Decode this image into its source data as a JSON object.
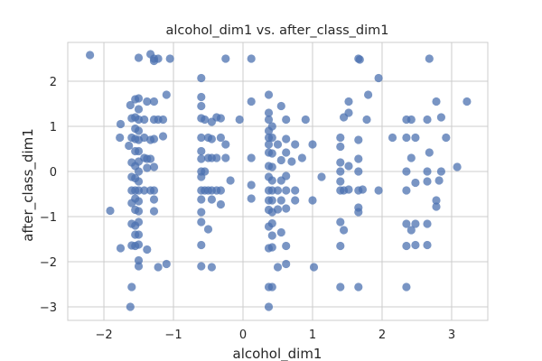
{
  "chart_data": {
    "type": "scatter",
    "title": "alcohol_dim1 vs. after_class_dim1",
    "xlabel": "alcohol_dim1",
    "ylabel": "after_class_dim1",
    "xlim": [
      -2.52,
      3.52
    ],
    "ylim": [
      -3.3,
      2.86
    ],
    "xticks": [
      -2,
      -1,
      0,
      1,
      2,
      3
    ],
    "yticks": [
      -3,
      -2,
      -1,
      0,
      1,
      2
    ],
    "grid": true,
    "point_color": "#4c72b0",
    "background": "#ffffff",
    "grid_color": "#cccccc",
    "points": [
      [
        -2.2,
        2.58
      ],
      [
        -1.91,
        -0.87
      ],
      [
        -1.76,
        1.05
      ],
      [
        -1.77,
        0.75
      ],
      [
        -1.76,
        -1.7
      ],
      [
        -1.64,
        0.57
      ],
      [
        -1.62,
        1.47
      ],
      [
        -1.6,
        1.18
      ],
      [
        -1.6,
        0.75
      ],
      [
        -1.6,
        0.2
      ],
      [
        -1.6,
        -0.12
      ],
      [
        -1.6,
        -0.42
      ],
      [
        -1.6,
        -0.7
      ],
      [
        -1.6,
        -1.16
      ],
      [
        -1.6,
        -1.64
      ],
      [
        -1.6,
        -2.56
      ],
      [
        -1.62,
        -3.0
      ],
      [
        -1.55,
        1.6
      ],
      [
        -1.55,
        1.2
      ],
      [
        -1.55,
        0.95
      ],
      [
        -1.55,
        0.72
      ],
      [
        -1.55,
        0.45
      ],
      [
        -1.55,
        0.12
      ],
      [
        -1.55,
        -0.15
      ],
      [
        -1.55,
        -0.42
      ],
      [
        -1.55,
        -0.6
      ],
      [
        -1.55,
        -0.85
      ],
      [
        -1.55,
        -1.2
      ],
      [
        -1.55,
        -1.4
      ],
      [
        -1.55,
        -1.65
      ],
      [
        -1.5,
        2.52
      ],
      [
        -1.5,
        1.62
      ],
      [
        -1.5,
        1.38
      ],
      [
        -1.5,
        1.15
      ],
      [
        -1.5,
        0.9
      ],
      [
        -1.5,
        0.7
      ],
      [
        -1.5,
        0.45
      ],
      [
        -1.5,
        0.22
      ],
      [
        -1.5,
        0.0
      ],
      [
        -1.5,
        -0.22
      ],
      [
        -1.5,
        -0.42
      ],
      [
        -1.5,
        -0.66
      ],
      [
        -1.5,
        -0.88
      ],
      [
        -1.5,
        -1.12
      ],
      [
        -1.5,
        -1.4
      ],
      [
        -1.5,
        -1.62
      ],
      [
        -1.5,
        -1.97
      ],
      [
        -1.5,
        -2.1
      ],
      [
        -1.42,
        1.15
      ],
      [
        -1.42,
        0.75
      ],
      [
        -1.42,
        0.3
      ],
      [
        -1.42,
        -0.42
      ],
      [
        -1.38,
        1.55
      ],
      [
        -1.38,
        0.28
      ],
      [
        -1.38,
        0.08
      ],
      [
        -1.38,
        -1.73
      ],
      [
        -1.33,
        2.6
      ],
      [
        -1.33,
        0.7
      ],
      [
        -1.33,
        0.28
      ],
      [
        -1.33,
        -0.42
      ],
      [
        -1.28,
        2.5
      ],
      [
        -1.28,
        2.45
      ],
      [
        -1.28,
        1.55
      ],
      [
        -1.28,
        1.15
      ],
      [
        -1.28,
        0.72
      ],
      [
        -1.28,
        0.1
      ],
      [
        -1.28,
        -0.42
      ],
      [
        -1.28,
        -0.62
      ],
      [
        -1.28,
        -0.88
      ],
      [
        -1.22,
        2.5
      ],
      [
        -1.22,
        1.15
      ],
      [
        -1.22,
        -2.12
      ],
      [
        -1.15,
        1.15
      ],
      [
        -1.15,
        0.78
      ],
      [
        -1.1,
        1.7
      ],
      [
        -1.05,
        2.5
      ],
      [
        -1.1,
        -2.05
      ],
      [
        -0.6,
        2.07
      ],
      [
        -0.6,
        1.65
      ],
      [
        -0.6,
        1.45
      ],
      [
        -0.6,
        1.18
      ],
      [
        -0.6,
        0.75
      ],
      [
        -0.6,
        0.45
      ],
      [
        -0.6,
        0.28
      ],
      [
        -0.6,
        0.0
      ],
      [
        -0.6,
        -0.12
      ],
      [
        -0.6,
        -0.42
      ],
      [
        -0.6,
        -0.62
      ],
      [
        -0.6,
        -0.9
      ],
      [
        -0.6,
        -1.12
      ],
      [
        -0.6,
        -1.63
      ],
      [
        -0.6,
        -2.1
      ],
      [
        -0.55,
        1.15
      ],
      [
        -0.55,
        0.0
      ],
      [
        -0.55,
        -0.42
      ],
      [
        -0.5,
        0.75
      ],
      [
        -0.5,
        0.3
      ],
      [
        -0.5,
        -0.42
      ],
      [
        -0.5,
        -1.28
      ],
      [
        -0.45,
        1.1
      ],
      [
        -0.45,
        0.72
      ],
      [
        -0.45,
        0.3
      ],
      [
        -0.45,
        -0.42
      ],
      [
        -0.45,
        -0.62
      ],
      [
        -0.45,
        -2.12
      ],
      [
        -0.38,
        1.2
      ],
      [
        -0.38,
        0.3
      ],
      [
        -0.38,
        -0.42
      ],
      [
        -0.32,
        1.18
      ],
      [
        -0.32,
        0.75
      ],
      [
        -0.32,
        -0.42
      ],
      [
        -0.32,
        -0.73
      ],
      [
        -0.25,
        2.5
      ],
      [
        -0.25,
        0.6
      ],
      [
        -0.25,
        0.3
      ],
      [
        -0.18,
        -0.2
      ],
      [
        -0.05,
        1.15
      ],
      [
        0.12,
        2.5
      ],
      [
        0.12,
        1.55
      ],
      [
        0.12,
        0.3
      ],
      [
        0.12,
        -0.3
      ],
      [
        0.12,
        -0.6
      ],
      [
        0.37,
        1.7
      ],
      [
        0.37,
        1.3
      ],
      [
        0.37,
        1.15
      ],
      [
        0.37,
        0.9
      ],
      [
        0.37,
        0.75
      ],
      [
        0.37,
        0.6
      ],
      [
        0.37,
        0.42
      ],
      [
        0.37,
        0.12
      ],
      [
        0.37,
        -0.12
      ],
      [
        0.37,
        -0.42
      ],
      [
        0.37,
        -0.64
      ],
      [
        0.37,
        -0.85
      ],
      [
        0.37,
        -1.22
      ],
      [
        0.37,
        -1.7
      ],
      [
        0.37,
        -2.56
      ],
      [
        0.37,
        -3.0
      ],
      [
        0.42,
        1.0
      ],
      [
        0.42,
        0.75
      ],
      [
        0.42,
        0.4
      ],
      [
        0.42,
        0.1
      ],
      [
        0.42,
        -0.2
      ],
      [
        0.42,
        -0.42
      ],
      [
        0.42,
        -0.64
      ],
      [
        0.42,
        -0.9
      ],
      [
        0.42,
        -1.15
      ],
      [
        0.42,
        -1.42
      ],
      [
        0.42,
        -1.68
      ],
      [
        0.42,
        -2.56
      ],
      [
        0.5,
        0.6
      ],
      [
        0.5,
        -0.42
      ],
      [
        0.5,
        -0.84
      ],
      [
        0.5,
        -2.12
      ],
      [
        0.55,
        1.45
      ],
      [
        0.55,
        0.25
      ],
      [
        0.55,
        -0.2
      ],
      [
        0.55,
        -0.64
      ],
      [
        0.55,
        -1.35
      ],
      [
        0.62,
        1.15
      ],
      [
        0.62,
        0.72
      ],
      [
        0.62,
        0.42
      ],
      [
        0.62,
        -0.1
      ],
      [
        0.62,
        -0.42
      ],
      [
        0.62,
        -0.82
      ],
      [
        0.62,
        -1.65
      ],
      [
        0.62,
        -2.05
      ],
      [
        0.7,
        0.22
      ],
      [
        0.75,
        0.6
      ],
      [
        0.75,
        -0.42
      ],
      [
        0.75,
        -0.64
      ],
      [
        0.85,
        0.3
      ],
      [
        0.9,
        1.15
      ],
      [
        1.0,
        0.6
      ],
      [
        1.0,
        -0.64
      ],
      [
        1.02,
        -2.12
      ],
      [
        1.13,
        -0.12
      ],
      [
        1.4,
        0.75
      ],
      [
        1.4,
        0.55
      ],
      [
        1.4,
        0.2
      ],
      [
        1.4,
        0.0
      ],
      [
        1.4,
        -0.22
      ],
      [
        1.4,
        -0.42
      ],
      [
        1.4,
        -1.12
      ],
      [
        1.4,
        -1.65
      ],
      [
        1.4,
        -2.56
      ],
      [
        1.45,
        1.2
      ],
      [
        1.45,
        -0.42
      ],
      [
        1.45,
        -1.3
      ],
      [
        1.52,
        1.3
      ],
      [
        1.52,
        1.55
      ],
      [
        1.52,
        0.12
      ],
      [
        1.52,
        -0.4
      ],
      [
        1.66,
        2.5
      ],
      [
        1.68,
        2.48
      ],
      [
        1.66,
        0.7
      ],
      [
        1.66,
        0.28
      ],
      [
        1.66,
        0.0
      ],
      [
        1.66,
        -0.42
      ],
      [
        1.66,
        -0.8
      ],
      [
        1.66,
        -0.9
      ],
      [
        1.66,
        -2.56
      ],
      [
        1.72,
        -0.4
      ],
      [
        1.78,
        1.15
      ],
      [
        1.8,
        1.7
      ],
      [
        1.95,
        2.07
      ],
      [
        1.95,
        -0.42
      ],
      [
        2.15,
        0.75
      ],
      [
        2.35,
        1.15
      ],
      [
        2.35,
        0.75
      ],
      [
        2.35,
        0.0
      ],
      [
        2.35,
        -0.42
      ],
      [
        2.35,
        -1.16
      ],
      [
        2.35,
        -1.65
      ],
      [
        2.35,
        -2.56
      ],
      [
        2.42,
        1.15
      ],
      [
        2.42,
        0.3
      ],
      [
        2.42,
        -1.3
      ],
      [
        2.48,
        0.75
      ],
      [
        2.48,
        -0.25
      ],
      [
        2.48,
        -1.16
      ],
      [
        2.48,
        -1.63
      ],
      [
        2.65,
        1.15
      ],
      [
        2.65,
        0.0
      ],
      [
        2.65,
        -0.22
      ],
      [
        2.65,
        -1.16
      ],
      [
        2.65,
        -1.63
      ],
      [
        2.68,
        2.5
      ],
      [
        2.68,
        0.42
      ],
      [
        2.78,
        1.55
      ],
      [
        2.78,
        -0.64
      ],
      [
        2.78,
        -0.78
      ],
      [
        2.85,
        1.2
      ],
      [
        2.85,
        0.0
      ],
      [
        2.82,
        -0.2
      ],
      [
        2.92,
        0.75
      ],
      [
        3.08,
        0.1
      ],
      [
        3.22,
        1.55
      ]
    ]
  }
}
